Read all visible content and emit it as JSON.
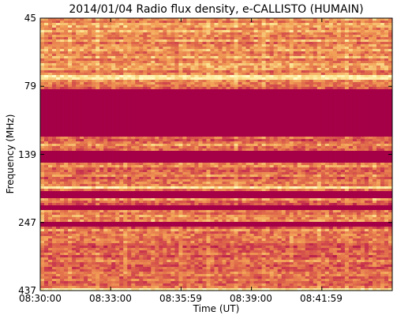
{
  "chart_data": {
    "type": "heatmap",
    "title": "2014/01/04  Radio flux density, e-CALLISTO (HUMAIN)",
    "xlabel": "Time (UT)",
    "ylabel": "Frequency (MHz)",
    "x_ticks": [
      "08:30:00",
      "08:33:00",
      "08:35:59",
      "08:39:00",
      "08:41:59"
    ],
    "y_ticks": [
      "45",
      "79",
      "139",
      "247",
      "437"
    ],
    "x_range": [
      "08:30:00",
      "08:45:00"
    ],
    "y_range": [
      45,
      437
    ],
    "y_inverted": true,
    "colormap": [
      "#a50047",
      "#c8334d",
      "#e06a4a",
      "#f3a257",
      "#fbe28f",
      "#ffffcc"
    ],
    "saturated_bands_mhz": [
      [
        82,
        120
      ],
      [
        137,
        150
      ],
      [
        190,
        203
      ],
      [
        213,
        222
      ],
      [
        248,
        255
      ]
    ],
    "bright_bands_mhz": [
      [
        72,
        75
      ],
      [
        172,
        174
      ],
      [
        183,
        188
      ],
      [
        232,
        233
      ],
      [
        430,
        433
      ]
    ],
    "grid": false
  }
}
